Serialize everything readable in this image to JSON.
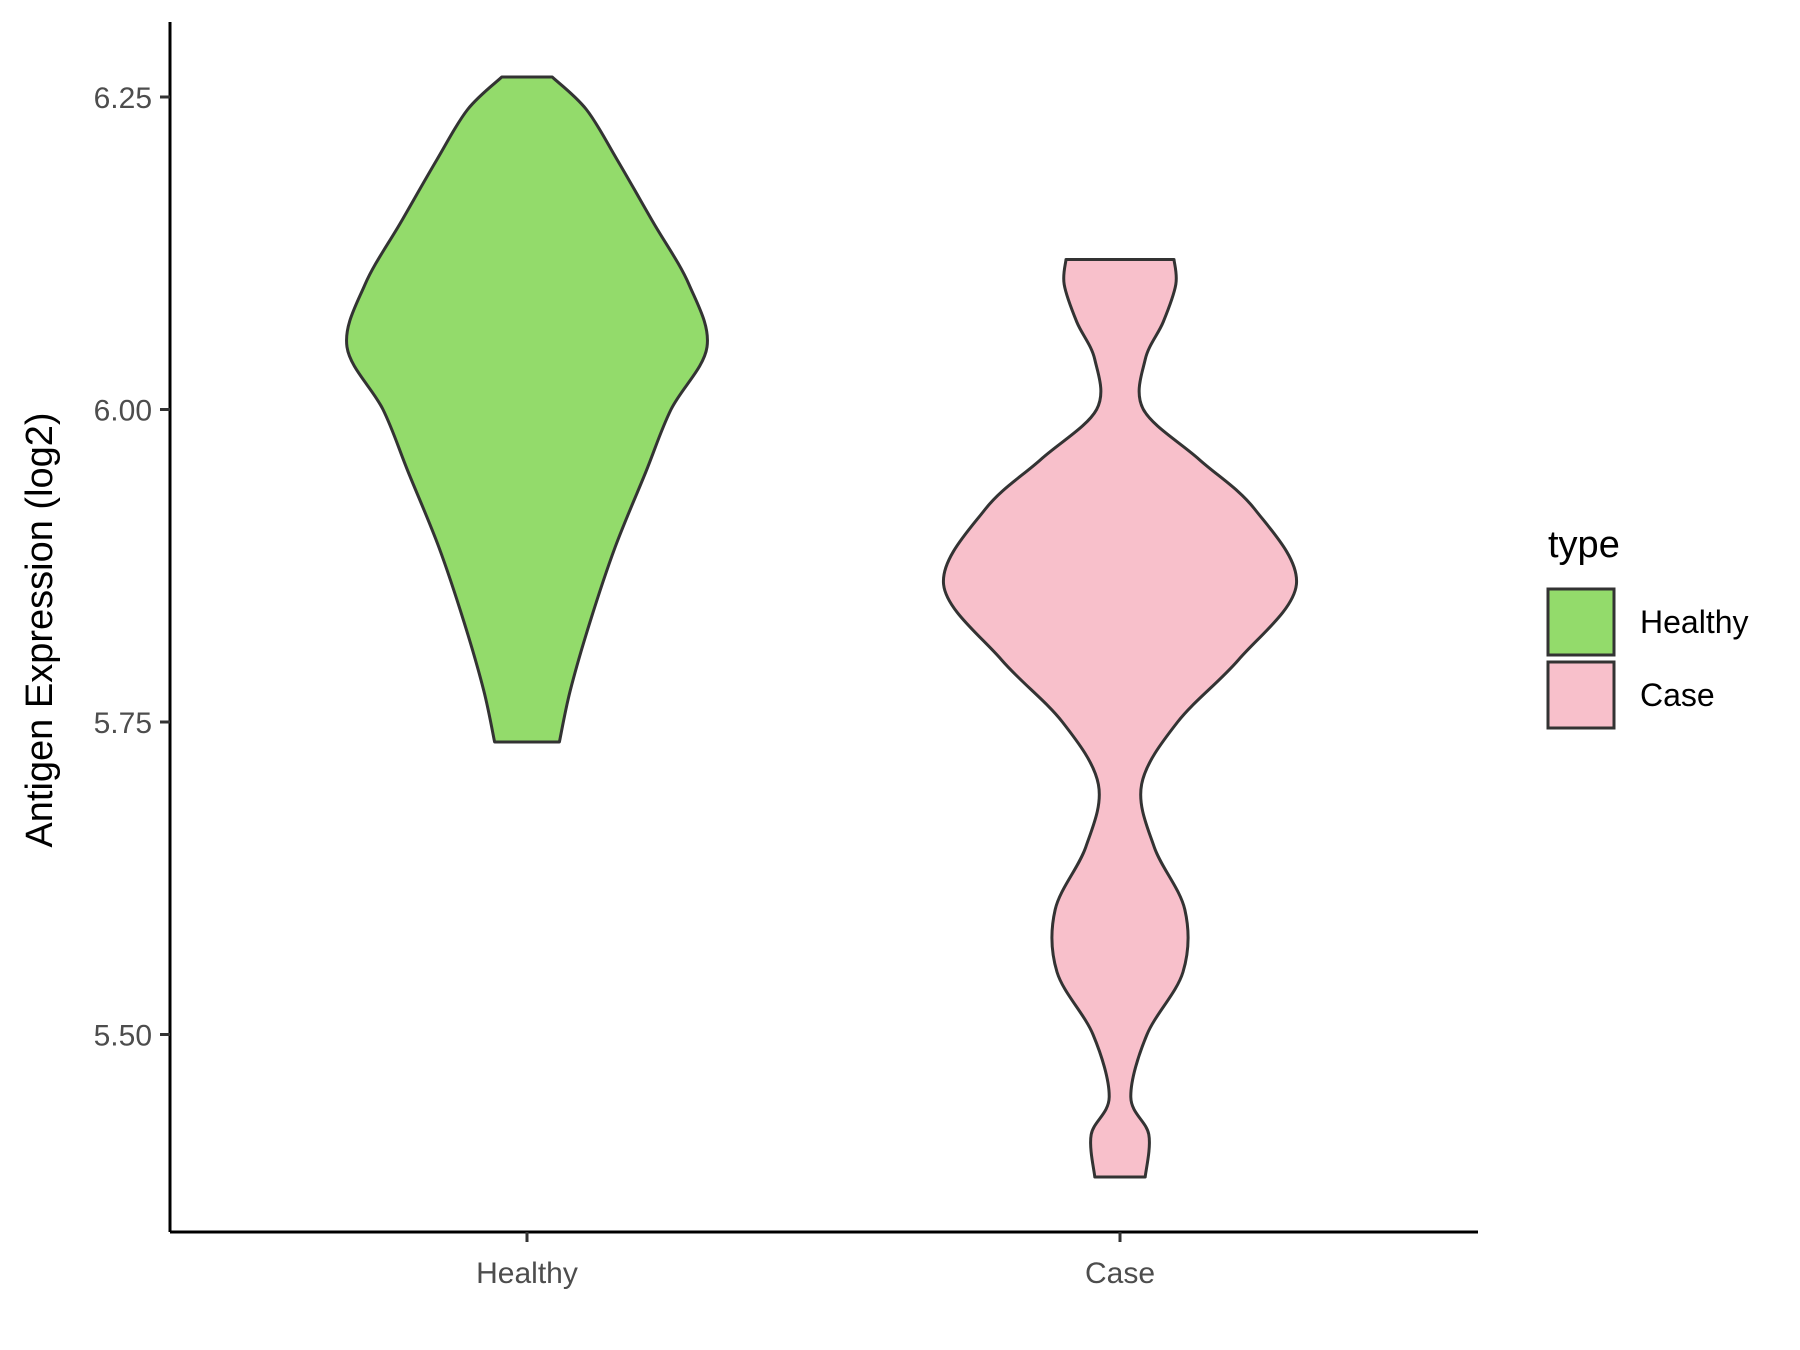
{
  "chart_data": {
    "type": "violin",
    "ylabel": "Antigen Expression (log2)",
    "xlabel": "",
    "categories": [
      "Healthy",
      "Case"
    ],
    "ylim": [
      5.342,
      6.31
    ],
    "yticks": [
      5.5,
      5.75,
      6.0,
      6.25
    ],
    "ytick_labels": [
      "5.50",
      "5.75",
      "6.00",
      "6.25"
    ],
    "grid": false,
    "legend": {
      "title": "type",
      "position": "right",
      "entries": [
        {
          "label": "Healthy",
          "color": "#93DB6B"
        },
        {
          "label": "Case",
          "color": "#F8C0CB"
        }
      ]
    },
    "series": [
      {
        "name": "Healthy",
        "color": "#93DB6B",
        "min": 5.734,
        "max": 6.266,
        "density": [
          [
            5.734,
            0.18
          ],
          [
            5.775,
            0.24
          ],
          [
            5.83,
            0.35
          ],
          [
            5.89,
            0.49
          ],
          [
            5.95,
            0.66
          ],
          [
            6.0,
            0.8
          ],
          [
            6.05,
            1.0
          ],
          [
            6.1,
            0.9
          ],
          [
            6.15,
            0.7
          ],
          [
            6.2,
            0.5
          ],
          [
            6.24,
            0.33
          ],
          [
            6.266,
            0.14
          ]
        ]
      },
      {
        "name": "Case",
        "color": "#F8C0CB",
        "min": 5.386,
        "max": 6.12,
        "density": [
          [
            5.386,
            0.14
          ],
          [
            5.42,
            0.16
          ],
          [
            5.45,
            0.06
          ],
          [
            5.5,
            0.15
          ],
          [
            5.55,
            0.35
          ],
          [
            5.6,
            0.36
          ],
          [
            5.65,
            0.19
          ],
          [
            5.7,
            0.12
          ],
          [
            5.75,
            0.32
          ],
          [
            5.8,
            0.66
          ],
          [
            5.86,
            0.98
          ],
          [
            5.92,
            0.75
          ],
          [
            5.96,
            0.44
          ],
          [
            6.0,
            0.13
          ],
          [
            6.04,
            0.14
          ],
          [
            6.07,
            0.24
          ],
          [
            6.1,
            0.31
          ],
          [
            6.12,
            0.3
          ]
        ]
      }
    ]
  }
}
